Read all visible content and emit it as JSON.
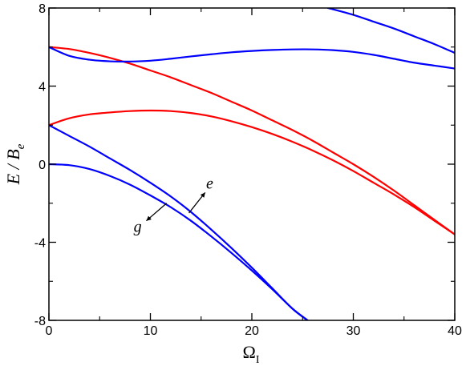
{
  "chart_data": {
    "type": "line",
    "xlabel": "ΩI",
    "ylabel": "E / Be",
    "xlim": [
      0,
      40
    ],
    "ylim": [
      -8,
      8
    ],
    "x_ticks": [
      0,
      10,
      20,
      30,
      40
    ],
    "y_ticks": [
      -8,
      -4,
      0,
      4,
      8
    ],
    "x_tick_labels": [
      "0",
      "10",
      "20",
      "30",
      "40"
    ],
    "y_tick_labels": [
      "-8",
      "-4",
      "0",
      "4",
      "8"
    ],
    "grid": false,
    "series": [
      {
        "color": "#0000ff",
        "x": [
          0,
          2,
          4,
          6,
          8,
          10,
          12,
          14,
          16,
          18,
          20,
          22,
          24,
          25.5
        ],
        "y": [
          0,
          -0.05,
          -0.25,
          -0.6,
          -1.05,
          -1.6,
          -2.2,
          -2.9,
          -3.7,
          -4.55,
          -5.45,
          -6.4,
          -7.4,
          -8.0
        ]
      },
      {
        "color": "#0000ff",
        "x": [
          0,
          2,
          4,
          6,
          8,
          10,
          12,
          14,
          16,
          18,
          20,
          22,
          24,
          25.5
        ],
        "y": [
          2,
          1.45,
          0.9,
          0.3,
          -0.3,
          -0.95,
          -1.65,
          -2.45,
          -3.35,
          -4.3,
          -5.3,
          -6.35,
          -7.4,
          -8.0
        ]
      },
      {
        "color": "#ff0000",
        "x": [
          0,
          2,
          4,
          6,
          8,
          10,
          12,
          14,
          16,
          18,
          20,
          22,
          24,
          26,
          28,
          30,
          32,
          34,
          36,
          38,
          40
        ],
        "y": [
          2,
          2.35,
          2.55,
          2.65,
          2.72,
          2.75,
          2.72,
          2.62,
          2.45,
          2.2,
          1.9,
          1.55,
          1.15,
          0.7,
          0.2,
          -0.35,
          -0.95,
          -1.55,
          -2.2,
          -2.9,
          -3.6
        ]
      },
      {
        "color": "#ff0000",
        "x": [
          0,
          2,
          4,
          6,
          8,
          10,
          12,
          14,
          16,
          18,
          20,
          22,
          24,
          26,
          28,
          30,
          32,
          34,
          36,
          38,
          40
        ],
        "y": [
          6,
          5.9,
          5.7,
          5.45,
          5.15,
          4.8,
          4.45,
          4.05,
          3.65,
          3.2,
          2.75,
          2.25,
          1.75,
          1.2,
          0.6,
          0.0,
          -0.65,
          -1.35,
          -2.1,
          -2.85,
          -3.6
        ]
      },
      {
        "color": "#0000ff",
        "x": [
          0,
          2,
          4,
          6,
          8,
          10,
          12,
          14,
          16,
          18,
          20,
          22,
          24,
          26,
          28,
          30,
          32,
          34,
          36,
          38,
          40
        ],
        "y": [
          6,
          5.55,
          5.35,
          5.27,
          5.26,
          5.3,
          5.4,
          5.52,
          5.63,
          5.73,
          5.8,
          5.85,
          5.88,
          5.88,
          5.84,
          5.75,
          5.6,
          5.4,
          5.2,
          5.05,
          4.9
        ]
      },
      {
        "color": "#0000ff",
        "x": [
          27.5,
          30,
          32,
          34,
          36,
          38,
          40
        ],
        "y": [
          8,
          7.65,
          7.3,
          6.95,
          6.55,
          6.15,
          5.7
        ]
      }
    ],
    "annotations": [
      {
        "text": "e",
        "arrow_from": [
          13.8,
          -2.5
        ],
        "arrow_to": [
          15.4,
          -1.45
        ]
      },
      {
        "text": "g",
        "arrow_from": [
          11.6,
          -2.0
        ],
        "arrow_to": [
          9.6,
          -2.9
        ]
      }
    ]
  }
}
